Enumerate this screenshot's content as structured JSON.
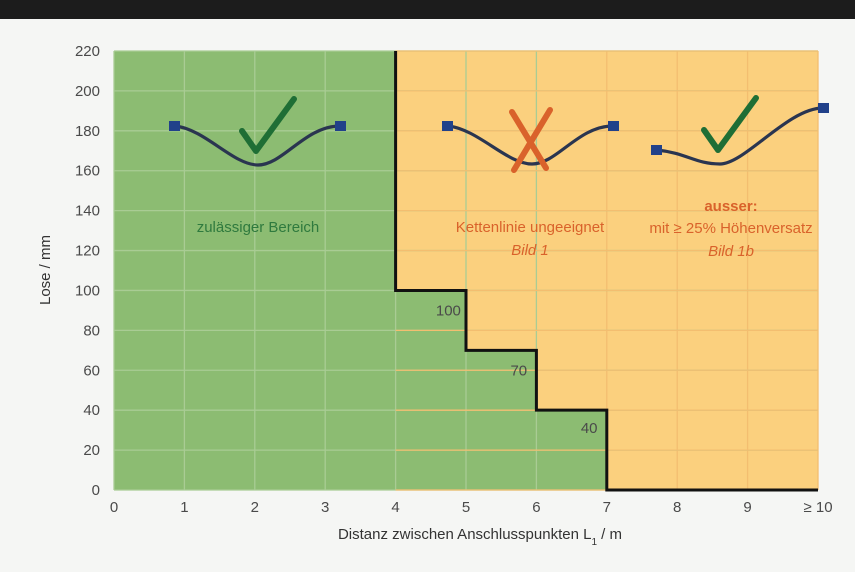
{
  "chart_data": {
    "type": "area",
    "xlabel": "Distanz zwischen Anschlusspunkten L",
    "xlabel_subscript": "1",
    "xlabel_unit": " / m",
    "ylabel": "Lose / mm",
    "xlim": [
      0,
      10
    ],
    "ylim": [
      0,
      220
    ],
    "grid": true,
    "x_ticks": [
      0,
      1,
      2,
      3,
      4,
      5,
      6,
      7,
      8,
      9,
      10
    ],
    "x_tick_labels": [
      "0",
      "1",
      "2",
      "3",
      "4",
      "5",
      "6",
      "7",
      "8",
      "9",
      "≥ 10"
    ],
    "y_ticks": [
      0,
      20,
      40,
      60,
      80,
      100,
      120,
      140,
      160,
      180,
      200,
      220
    ],
    "y_tick_labels": [
      "0",
      "20",
      "40",
      "60",
      "80",
      "100",
      "120",
      "140",
      "160",
      "180",
      "200",
      "220"
    ],
    "boundary": {
      "x": [
        4,
        4,
        5,
        5,
        6,
        6,
        7,
        7,
        10
      ],
      "y": [
        220,
        100,
        100,
        70,
        70,
        40,
        40,
        0,
        0
      ]
    },
    "step_labels": [
      {
        "text": "100",
        "x": 4.75,
        "y": 90
      },
      {
        "text": "70",
        "x": 5.75,
        "y": 60
      },
      {
        "text": "40",
        "x": 6.75,
        "y": 31
      }
    ],
    "colors": {
      "allowed": "#8cbc72",
      "unsuitable": "#fbd07e",
      "grid": "#a9cc94",
      "grid_warm": "#f3be70",
      "boundary": "#111111",
      "check": "#1f6e35",
      "cross": "#d9622b",
      "curve": "#2a3550",
      "anchor": "#21418a"
    },
    "annotations": {
      "allowed": {
        "text": "zulässiger Bereich",
        "color": "#2f7a3e"
      },
      "unsuitable": {
        "text": "Kettenlinie ungeeignet",
        "ref": "Bild 1",
        "color": "#d9622b"
      },
      "exception": {
        "title": "ausser:",
        "text": "mit ≥ 25% Höhenversatz",
        "ref": "Bild 1b",
        "color": "#d9622b"
      }
    },
    "icons": [
      {
        "name": "catenary-check-icon",
        "symbol": "check"
      },
      {
        "name": "catenary-cross-icon",
        "symbol": "cross"
      },
      {
        "name": "catenary-offset-check-icon",
        "symbol": "check"
      }
    ]
  }
}
